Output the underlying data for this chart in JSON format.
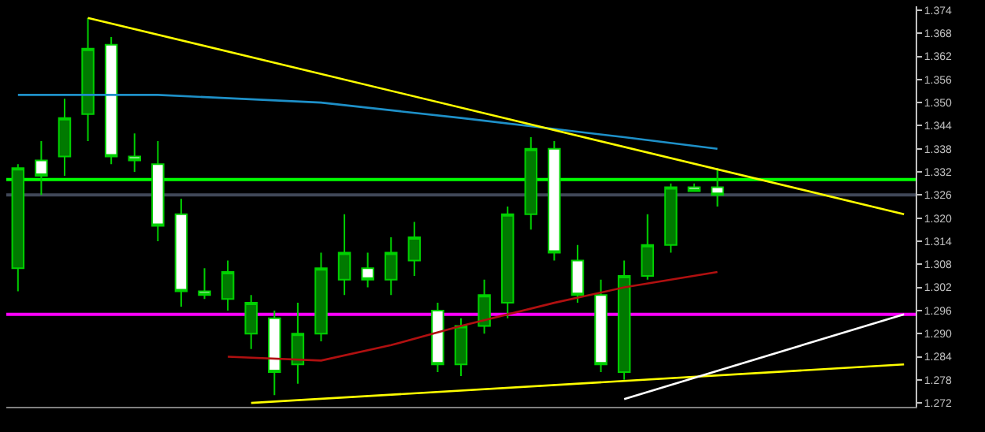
{
  "chart_data": {
    "type": "candlestick",
    "categories": [
      null,
      null,
      null,
      null,
      null,
      null,
      null,
      null,
      null,
      null,
      null,
      null,
      null,
      null,
      null,
      null,
      null,
      null,
      null,
      null,
      null,
      null,
      null,
      null,
      null,
      null,
      null,
      null,
      null,
      null,
      null,
      null,
      null,
      null,
      null,
      null,
      null,
      null,
      null
    ],
    "ohlc": [
      [
        1.307,
        1.334,
        1.301,
        1.333
      ],
      [
        1.335,
        1.34,
        1.326,
        1.331
      ],
      [
        1.336,
        1.351,
        1.331,
        1.346
      ],
      [
        1.347,
        1.372,
        1.34,
        1.364
      ],
      [
        1.365,
        1.367,
        1.334,
        1.336
      ],
      [
        1.336,
        1.342,
        1.332,
        1.335
      ],
      [
        1.334,
        1.34,
        1.314,
        1.318
      ],
      [
        1.321,
        1.325,
        1.297,
        1.301
      ],
      [
        1.301,
        1.307,
        1.299,
        1.3
      ],
      [
        1.299,
        1.309,
        1.296,
        1.306
      ],
      [
        1.29,
        1.3,
        1.286,
        1.298
      ],
      [
        1.294,
        1.296,
        1.274,
        1.28
      ],
      [
        1.282,
        1.298,
        1.277,
        1.29
      ],
      [
        1.29,
        1.311,
        1.288,
        1.307
      ],
      [
        1.304,
        1.321,
        1.3,
        1.311
      ],
      [
        1.307,
        1.311,
        1.302,
        1.304
      ],
      [
        1.304,
        1.315,
        1.3,
        1.311
      ],
      [
        1.309,
        1.319,
        1.305,
        1.315
      ],
      [
        1.296,
        1.298,
        1.28,
        1.282
      ],
      [
        1.282,
        1.294,
        1.279,
        1.292
      ],
      [
        1.292,
        1.304,
        1.29,
        1.3
      ],
      [
        1.298,
        1.323,
        1.294,
        1.321
      ],
      [
        1.321,
        1.341,
        1.317,
        1.338
      ],
      [
        1.338,
        1.34,
        1.309,
        1.311
      ],
      [
        1.309,
        1.313,
        1.298,
        1.3
      ],
      [
        1.3,
        1.304,
        1.28,
        1.282
      ],
      [
        1.28,
        1.309,
        1.278,
        1.305
      ],
      [
        1.305,
        1.321,
        1.304,
        1.313
      ],
      [
        1.313,
        1.329,
        1.311,
        1.328
      ],
      [
        1.328,
        1.329,
        1.327,
        1.327
      ],
      [
        1.328,
        1.333,
        1.323,
        1.326
      ],
      null,
      null,
      null,
      null,
      null,
      null,
      null,
      null
    ],
    "series": [
      {
        "type": "line",
        "color": "#1e90c8",
        "values": [
          1.352,
          null,
          null,
          null,
          null,
          null,
          1.352,
          null,
          null,
          null,
          null,
          null,
          null,
          1.35,
          null,
          null,
          null,
          null,
          null,
          1.346,
          null,
          null,
          null,
          null,
          null,
          null,
          1.341,
          null,
          null,
          null,
          1.338,
          null,
          null,
          null,
          null,
          null,
          null,
          null,
          null
        ]
      },
      {
        "type": "line",
        "color": "#b01010",
        "values": [
          null,
          null,
          null,
          null,
          null,
          null,
          null,
          null,
          null,
          1.284,
          null,
          null,
          null,
          1.283,
          null,
          null,
          1.287,
          null,
          null,
          1.292,
          null,
          null,
          null,
          1.298,
          null,
          null,
          1.302,
          null,
          null,
          null,
          1.306,
          null,
          null,
          null,
          null,
          null,
          null,
          null,
          null
        ]
      },
      {
        "type": "line",
        "color": "#ffff00",
        "values": [
          null,
          null,
          null,
          1.372,
          null,
          null,
          null,
          null,
          null,
          null,
          null,
          null,
          null,
          null,
          null,
          null,
          null,
          null,
          null,
          null,
          null,
          null,
          null,
          null,
          null,
          null,
          null,
          null,
          null,
          null,
          null,
          null,
          null,
          null,
          null,
          null,
          null,
          null,
          1.321
        ]
      },
      {
        "type": "line",
        "color": "#ffff00",
        "values": [
          null,
          null,
          null,
          null,
          null,
          null,
          null,
          null,
          null,
          null,
          1.272,
          null,
          null,
          null,
          null,
          null,
          null,
          null,
          null,
          null,
          null,
          null,
          null,
          null,
          null,
          null,
          null,
          null,
          null,
          null,
          null,
          null,
          null,
          null,
          null,
          null,
          null,
          null,
          1.282
        ]
      },
      {
        "type": "line",
        "color": "#ffffff",
        "values": [
          null,
          null,
          null,
          null,
          null,
          null,
          null,
          null,
          null,
          null,
          null,
          null,
          null,
          null,
          null,
          null,
          null,
          null,
          null,
          null,
          null,
          null,
          null,
          null,
          null,
          null,
          1.273,
          null,
          null,
          null,
          null,
          null,
          null,
          null,
          null,
          null,
          null,
          null,
          1.295
        ]
      }
    ],
    "ref_lines": [
      {
        "axis": "y",
        "value": 1.33,
        "color": "#00ff00"
      },
      {
        "axis": "y",
        "value": 1.326,
        "color": "#404858"
      },
      {
        "axis": "y",
        "value": 1.295,
        "color": "#ff00ff"
      }
    ],
    "ylim": [
      1.271,
      1.375
    ],
    "yticks": [
      1.272,
      1.278,
      1.284,
      {
        "value": 1.29,
        "label": "1.290"
      },
      1.296,
      1.302,
      1.308,
      1.314,
      {
        "value": 1.32,
        "label": "1.320"
      },
      1.326,
      1.332,
      1.338,
      1.344,
      {
        "value": 1.35,
        "label": "1.350"
      },
      1.356,
      1.362,
      1.368,
      1.374
    ],
    "tick_labels": "y",
    "grid": false
  }
}
